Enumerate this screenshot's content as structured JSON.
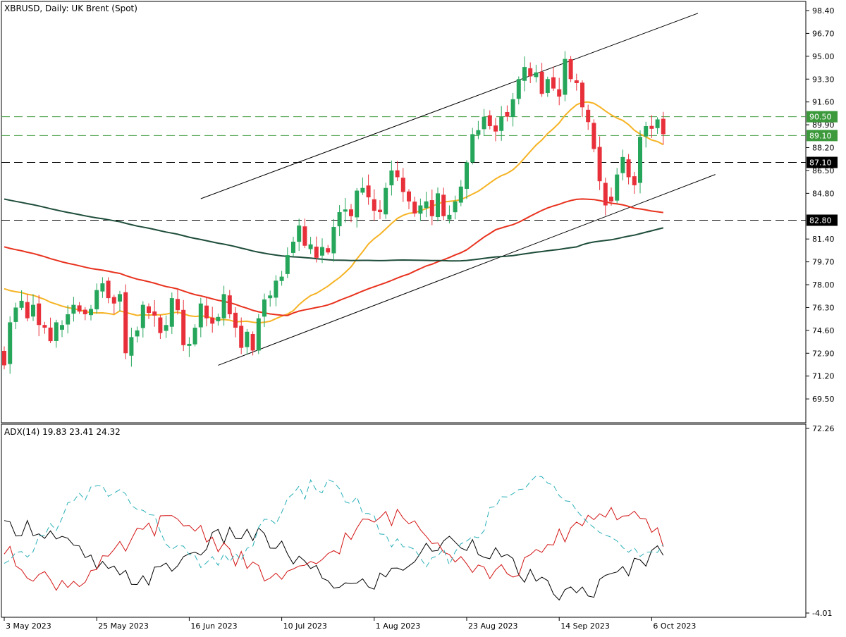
{
  "header": {
    "main_title": "XBRUSD, Daily:  UK Brent (Spot)",
    "indicator_title": "ADX(14) 19.83 23.41 24.32"
  },
  "colors": {
    "bull": "#26a65b",
    "bear": "#e8303a",
    "ma_fast": "#f6b324",
    "ma_mid": "#e8321e",
    "ma_slow": "#1e4d3a",
    "adx": "#000000",
    "plus_di": "#d31414",
    "minus_di": "#2ab0b8",
    "level_green": "#3c9a3c",
    "level_black": "#000000"
  },
  "chart_data": [
    {
      "type": "candlestick",
      "title": "XBRUSD, Daily:  UK Brent (Spot)",
      "ylim": [
        68.3,
        99.3
      ],
      "y_tick_labels": [
        "98.40",
        "96.70",
        "95.00",
        "93.30",
        "91.60",
        "89.90",
        "88.20",
        "86.50",
        "84.80",
        "81.40",
        "79.70",
        "78.00",
        "76.30",
        "74.60",
        "72.90",
        "71.20",
        "69.50"
      ],
      "x_tick_labels": [
        "3 May 2023",
        "25 May 2023",
        "16 Jun 2023",
        "10 Jul 2023",
        "1 Aug 2023",
        "23 Aug 2023",
        "14 Sep 2023",
        "6 Oct 2023"
      ],
      "x_tick_index": [
        0,
        16,
        32,
        48,
        64,
        80,
        96,
        112
      ],
      "closes": [
        72.0,
        75.2,
        76.3,
        76.8,
        75.5,
        76.5,
        75.0,
        74.8,
        73.8,
        75.2,
        75.0,
        75.8,
        76.5,
        76.0,
        75.8,
        76.2,
        77.6,
        78.1,
        77.0,
        76.6,
        77.3,
        72.9,
        74.1,
        74.6,
        76.5,
        75.9,
        75.7,
        74.4,
        75.0,
        77.0,
        76.1,
        73.5,
        73.6,
        74.8,
        76.6,
        75.5,
        75.1,
        75.6,
        77.3,
        75.8,
        74.8,
        73.3,
        74.5,
        73.1,
        75.5,
        76.9,
        77.2,
        78.3,
        78.6,
        80.2,
        81.2,
        82.4,
        80.9,
        81.0,
        80.0,
        80.8,
        80.4,
        82.3,
        83.4,
        83.6,
        83.1,
        85.0,
        85.2,
        84.5,
        83.5,
        83.4,
        85.2,
        86.5,
        86.0,
        84.9,
        84.2,
        83.3,
        83.9,
        84.2,
        83.1,
        84.8,
        83.1,
        83.2,
        84.2,
        85.3,
        87.1,
        89.2,
        89.5,
        90.5,
        89.8,
        89.4,
        90.5,
        90.5,
        91.8,
        93.3,
        94.2,
        93.5,
        93.8,
        92.2,
        93.3,
        92.6,
        92.0,
        94.8,
        93.3,
        93.0,
        91.2,
        90.1,
        88.1,
        85.7,
        83.9,
        84.2,
        86.2,
        87.5,
        86.0,
        85.4,
        89.0,
        89.8,
        89.6,
        90.3,
        89.2
      ],
      "last_values": {
        "ma_fast": 88.4,
        "ma_mid": 83.2,
        "ma_slow": 82.2
      },
      "horizontal_levels": [
        {
          "value": 90.5,
          "label": "90.50",
          "style": "green"
        },
        {
          "value": 89.1,
          "label": "89.10",
          "style": "green"
        },
        {
          "value": 87.1,
          "label": "87.10",
          "style": "black"
        },
        {
          "value": 82.8,
          "label": "82.80",
          "style": "black"
        }
      ],
      "trend_channel": {
        "lower": [
          [
            37,
            72.0
          ],
          [
            123,
            86.2
          ]
        ],
        "upper": [
          [
            34,
            84.4
          ],
          [
            120,
            98.2
          ]
        ]
      }
    },
    {
      "type": "line",
      "title": "ADX(14) 19.83 23.41 24.32",
      "ylim": [
        -4.01,
        72.26
      ],
      "y_tick_labels": [
        "72.26",
        "-4.01"
      ],
      "last_values": {
        "adx": 19.83,
        "plus_di": 23.41,
        "minus_di": 24.32
      }
    }
  ]
}
